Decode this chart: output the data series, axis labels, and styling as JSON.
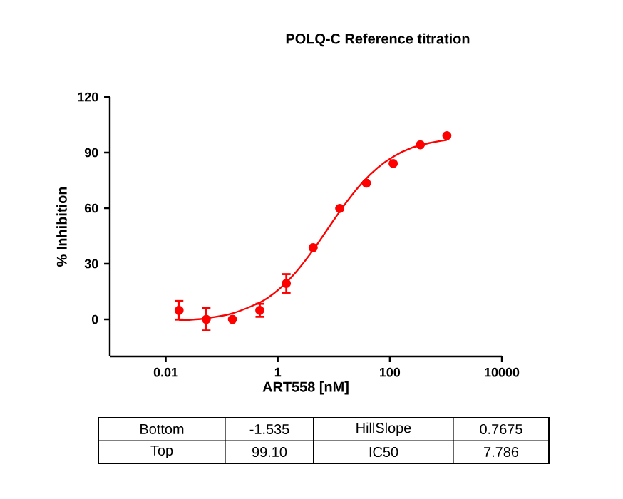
{
  "chart_data": {
    "type": "scatter",
    "title": "POLQ-C Reference titration",
    "xlabel": "ART558 [nM]",
    "ylabel": "% Inhibition",
    "log": "x",
    "xlim": [
      0.001,
      10000
    ],
    "xticks": [
      0.01,
      1,
      100,
      10000
    ],
    "ylim": [
      -20,
      120
    ],
    "yticks": [
      0,
      30,
      60,
      90,
      120
    ],
    "grid": false,
    "marker": "circle",
    "series": [
      {
        "color": "#ff0000",
        "x": [
          0.0173,
          0.0528,
          0.155,
          0.477,
          1.42,
          4.27,
          12.8,
          38.3,
          115,
          351,
          1045
        ],
        "values": [
          4.9,
          0,
          0,
          4.9,
          19.4,
          38.7,
          59.9,
          73.5,
          84.1,
          94.2,
          99.1
        ],
        "errors": [
          5,
          6,
          null,
          3.5,
          5,
          null,
          null,
          null,
          null,
          null,
          null
        ]
      },
      {
        "type": "line",
        "color": "#ff0000",
        "marker": "none",
        "line_style": "solid",
        "x": [
          0.0173,
          0.05,
          0.15,
          0.5,
          1,
          2,
          4,
          7.786,
          15,
          30,
          60,
          120,
          250,
          500,
          1045
        ],
        "values": [
          -0.6,
          0.5,
          3.1,
          9.4,
          15.7,
          24.7,
          36.2,
          48.8,
          61.2,
          72.7,
          81.7,
          88.1,
          92.6,
          95.1,
          96.8
        ]
      }
    ],
    "annotations": [
      "Bottom",
      "-1.535",
      "HillSlope",
      "0.7675",
      "Top",
      "99.10",
      "IC50",
      "7.786"
    ]
  }
}
